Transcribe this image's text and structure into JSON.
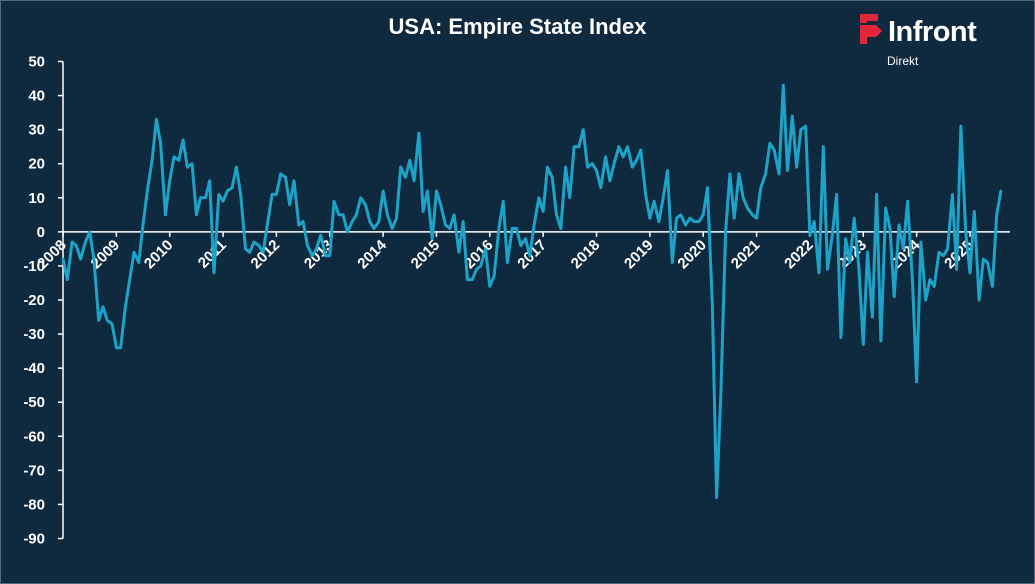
{
  "chart_data": {
    "type": "line",
    "title": "USA: Empire State Index",
    "xlabel": "",
    "ylabel": "",
    "ylim": [
      -90,
      50
    ],
    "y_ticks": [
      50,
      40,
      30,
      20,
      10,
      0,
      -10,
      -20,
      -30,
      -40,
      -50,
      -60,
      -70,
      -80,
      -90
    ],
    "x_tick_labels": [
      "2008",
      "2009",
      "2010",
      "2011",
      "2012",
      "2013",
      "2014",
      "2015",
      "2016",
      "2017",
      "2018",
      "2019",
      "2020",
      "2021",
      "2022",
      "2023",
      "2024",
      "2025"
    ],
    "x_range": [
      2008.0,
      2025.75
    ],
    "grid": false,
    "line_color": "#1ea3c8",
    "series": [
      {
        "values": [
          [
            2008.0,
            -8
          ],
          [
            2008.08,
            -14
          ],
          [
            2008.17,
            -3
          ],
          [
            2008.25,
            -4
          ],
          [
            2008.33,
            -8
          ],
          [
            2008.42,
            -3
          ],
          [
            2008.5,
            0
          ],
          [
            2008.58,
            -8
          ],
          [
            2008.67,
            -26
          ],
          [
            2008.75,
            -22
          ],
          [
            2008.83,
            -26
          ],
          [
            2008.92,
            -27
          ],
          [
            2009.0,
            -34
          ],
          [
            2009.08,
            -34
          ],
          [
            2009.17,
            -22
          ],
          [
            2009.25,
            -14
          ],
          [
            2009.33,
            -6
          ],
          [
            2009.42,
            -9
          ],
          [
            2009.5,
            2
          ],
          [
            2009.58,
            12
          ],
          [
            2009.67,
            21
          ],
          [
            2009.75,
            33
          ],
          [
            2009.83,
            26
          ],
          [
            2009.92,
            5
          ],
          [
            2010.0,
            15
          ],
          [
            2010.08,
            22
          ],
          [
            2010.17,
            21
          ],
          [
            2010.25,
            27
          ],
          [
            2010.33,
            19
          ],
          [
            2010.42,
            20
          ],
          [
            2010.5,
            5
          ],
          [
            2010.58,
            10
          ],
          [
            2010.67,
            10
          ],
          [
            2010.75,
            15
          ],
          [
            2010.83,
            -12
          ],
          [
            2010.92,
            11
          ],
          [
            2011.0,
            9
          ],
          [
            2011.08,
            12
          ],
          [
            2011.17,
            13
          ],
          [
            2011.25,
            19
          ],
          [
            2011.33,
            11
          ],
          [
            2011.42,
            -5
          ],
          [
            2011.5,
            -6
          ],
          [
            2011.58,
            -3
          ],
          [
            2011.67,
            -4
          ],
          [
            2011.75,
            -6
          ],
          [
            2011.83,
            2
          ],
          [
            2011.92,
            11
          ],
          [
            2012.0,
            11
          ],
          [
            2012.08,
            17
          ],
          [
            2012.17,
            16
          ],
          [
            2012.25,
            8
          ],
          [
            2012.33,
            15
          ],
          [
            2012.42,
            2
          ],
          [
            2012.5,
            3
          ],
          [
            2012.58,
            -4
          ],
          [
            2012.67,
            -7
          ],
          [
            2012.75,
            -5
          ],
          [
            2012.83,
            -1
          ],
          [
            2012.92,
            -7
          ],
          [
            2013.0,
            -7
          ],
          [
            2013.08,
            9
          ],
          [
            2013.17,
            5
          ],
          [
            2013.25,
            5
          ],
          [
            2013.33,
            0
          ],
          [
            2013.42,
            3
          ],
          [
            2013.5,
            5
          ],
          [
            2013.58,
            10
          ],
          [
            2013.67,
            8
          ],
          [
            2013.75,
            3
          ],
          [
            2013.83,
            1
          ],
          [
            2013.92,
            3
          ],
          [
            2014.0,
            12
          ],
          [
            2014.08,
            5
          ],
          [
            2014.17,
            1
          ],
          [
            2014.25,
            4
          ],
          [
            2014.33,
            19
          ],
          [
            2014.42,
            16
          ],
          [
            2014.5,
            21
          ],
          [
            2014.58,
            15
          ],
          [
            2014.67,
            29
          ],
          [
            2014.75,
            6
          ],
          [
            2014.83,
            12
          ],
          [
            2014.92,
            -2
          ],
          [
            2015.0,
            12
          ],
          [
            2015.08,
            8
          ],
          [
            2015.17,
            2
          ],
          [
            2015.25,
            1
          ],
          [
            2015.33,
            5
          ],
          [
            2015.42,
            -6
          ],
          [
            2015.5,
            3
          ],
          [
            2015.58,
            -14
          ],
          [
            2015.67,
            -14
          ],
          [
            2015.75,
            -11
          ],
          [
            2015.83,
            -10
          ],
          [
            2015.92,
            -5
          ],
          [
            2016.0,
            -16
          ],
          [
            2016.08,
            -13
          ],
          [
            2016.17,
            1
          ],
          [
            2016.25,
            9
          ],
          [
            2016.33,
            -9
          ],
          [
            2016.42,
            1
          ],
          [
            2016.5,
            1
          ],
          [
            2016.58,
            -4
          ],
          [
            2016.67,
            -2
          ],
          [
            2016.75,
            -7
          ],
          [
            2016.83,
            2
          ],
          [
            2016.92,
            10
          ],
          [
            2017.0,
            6
          ],
          [
            2017.08,
            19
          ],
          [
            2017.17,
            16
          ],
          [
            2017.25,
            5
          ],
          [
            2017.33,
            1
          ],
          [
            2017.42,
            19
          ],
          [
            2017.5,
            10
          ],
          [
            2017.58,
            25
          ],
          [
            2017.67,
            25
          ],
          [
            2017.75,
            30
          ],
          [
            2017.83,
            19
          ],
          [
            2017.92,
            20
          ],
          [
            2018.0,
            18
          ],
          [
            2018.08,
            13
          ],
          [
            2018.17,
            22
          ],
          [
            2018.25,
            15
          ],
          [
            2018.33,
            20
          ],
          [
            2018.42,
            25
          ],
          [
            2018.5,
            22
          ],
          [
            2018.58,
            25
          ],
          [
            2018.67,
            19
          ],
          [
            2018.75,
            21
          ],
          [
            2018.83,
            24
          ],
          [
            2018.92,
            11
          ],
          [
            2019.0,
            4
          ],
          [
            2019.08,
            9
          ],
          [
            2019.17,
            3
          ],
          [
            2019.25,
            10
          ],
          [
            2019.33,
            18
          ],
          [
            2019.42,
            -9
          ],
          [
            2019.5,
            4
          ],
          [
            2019.58,
            5
          ],
          [
            2019.67,
            2
          ],
          [
            2019.75,
            4
          ],
          [
            2019.83,
            3
          ],
          [
            2019.92,
            3
          ],
          [
            2020.0,
            5
          ],
          [
            2020.08,
            13
          ],
          [
            2020.17,
            -21
          ],
          [
            2020.25,
            -78
          ],
          [
            2020.33,
            -48
          ],
          [
            2020.42,
            0
          ],
          [
            2020.5,
            17
          ],
          [
            2020.58,
            4
          ],
          [
            2020.67,
            17
          ],
          [
            2020.75,
            10
          ],
          [
            2020.83,
            7
          ],
          [
            2020.92,
            5
          ],
          [
            2021.0,
            4
          ],
          [
            2021.08,
            13
          ],
          [
            2021.17,
            17
          ],
          [
            2021.25,
            26
          ],
          [
            2021.33,
            24
          ],
          [
            2021.42,
            17
          ],
          [
            2021.5,
            43
          ],
          [
            2021.58,
            18
          ],
          [
            2021.67,
            34
          ],
          [
            2021.75,
            19
          ],
          [
            2021.83,
            30
          ],
          [
            2021.92,
            31
          ],
          [
            2022.0,
            -1
          ],
          [
            2022.08,
            3
          ],
          [
            2022.17,
            -12
          ],
          [
            2022.25,
            25
          ],
          [
            2022.33,
            -11
          ],
          [
            2022.42,
            -1
          ],
          [
            2022.5,
            11
          ],
          [
            2022.58,
            -31
          ],
          [
            2022.67,
            -2
          ],
          [
            2022.75,
            -9
          ],
          [
            2022.83,
            4
          ],
          [
            2022.92,
            -11
          ],
          [
            2023.0,
            -33
          ],
          [
            2023.08,
            -6
          ],
          [
            2023.17,
            -25
          ],
          [
            2023.25,
            11
          ],
          [
            2023.33,
            -32
          ],
          [
            2023.42,
            7
          ],
          [
            2023.5,
            1
          ],
          [
            2023.58,
            -19
          ],
          [
            2023.67,
            2
          ],
          [
            2023.75,
            -5
          ],
          [
            2023.83,
            9
          ],
          [
            2023.92,
            -14
          ],
          [
            2024.0,
            -44
          ],
          [
            2024.08,
            -3
          ],
          [
            2024.17,
            -20
          ],
          [
            2024.25,
            -14
          ],
          [
            2024.33,
            -16
          ],
          [
            2024.42,
            -6
          ],
          [
            2024.5,
            -7
          ],
          [
            2024.58,
            -5
          ],
          [
            2024.67,
            11
          ],
          [
            2024.75,
            -11
          ],
          [
            2024.83,
            31
          ],
          [
            2024.92,
            0
          ],
          [
            2025.0,
            -12
          ],
          [
            2025.08,
            6
          ],
          [
            2025.17,
            -20
          ],
          [
            2025.25,
            -8
          ],
          [
            2025.33,
            -9
          ],
          [
            2025.42,
            -16
          ],
          [
            2025.5,
            5
          ],
          [
            2025.58,
            12
          ]
        ]
      }
    ]
  },
  "logo": {
    "word": "Infront",
    "sub": "Direkt",
    "color": "#e0263a"
  }
}
